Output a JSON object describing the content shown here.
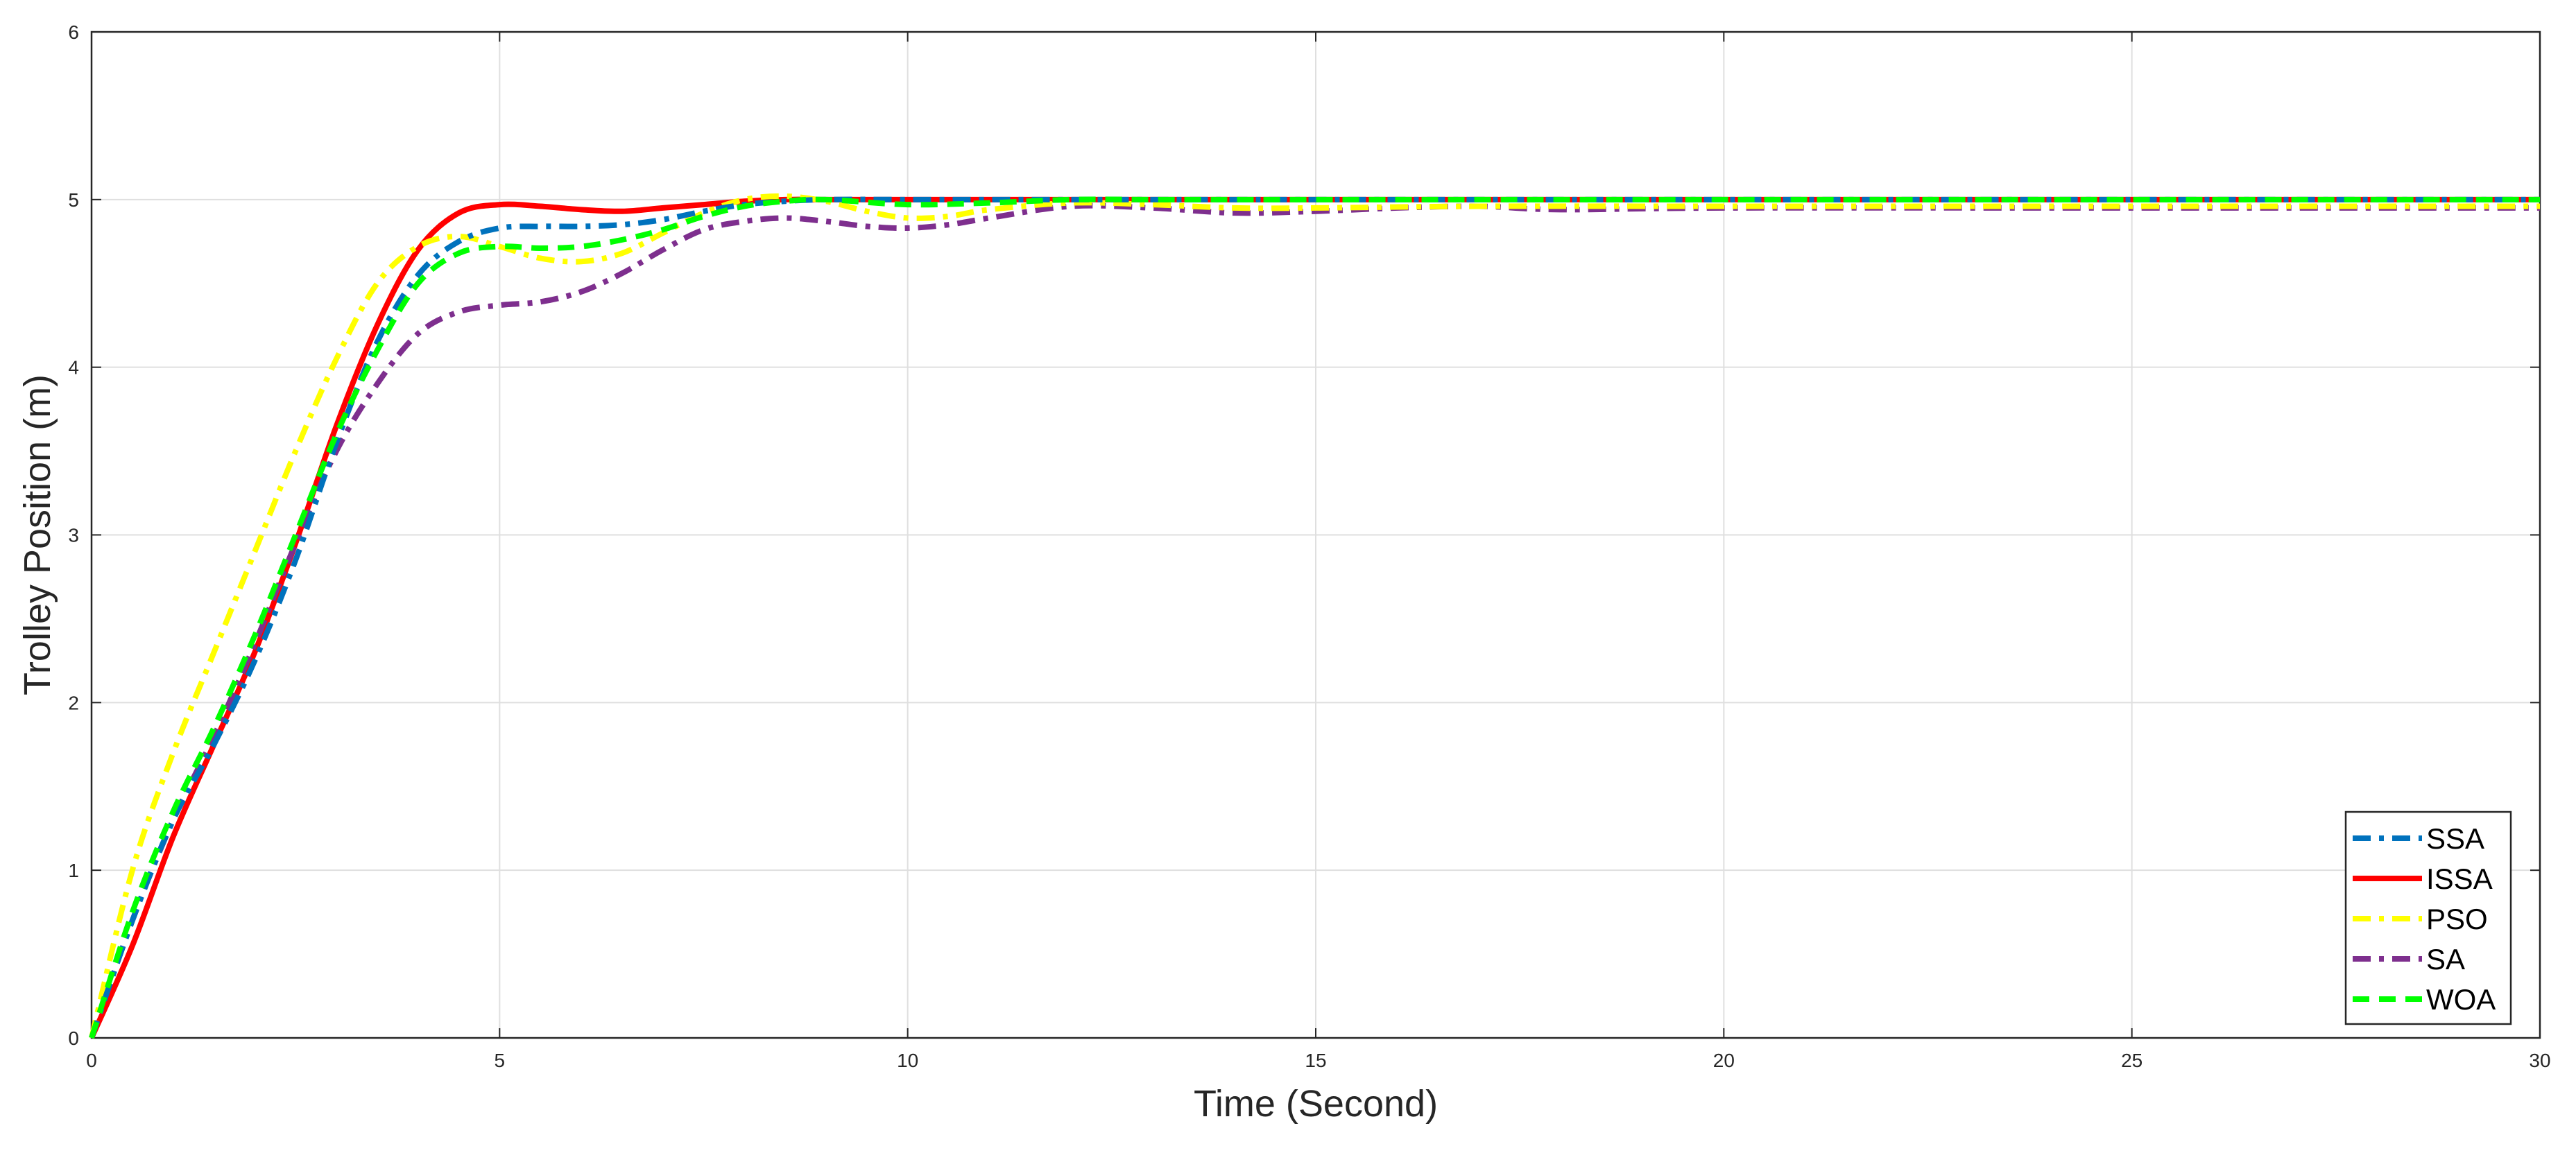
{
  "chart_data": {
    "type": "line",
    "title": "",
    "xlabel": "Time (Second)",
    "ylabel": "Trolley Position (m)",
    "xlim": [
      0,
      30
    ],
    "ylim": [
      0,
      6
    ],
    "xticks": [
      0,
      5,
      10,
      15,
      20,
      25,
      30
    ],
    "yticks": [
      0,
      1,
      2,
      3,
      4,
      5,
      6
    ],
    "xtick_labels": [
      "0",
      "5",
      "10",
      "15",
      "20",
      "25",
      "30"
    ],
    "ytick_labels": [
      "0",
      "1",
      "2",
      "3",
      "4",
      "5",
      "6"
    ],
    "grid": true,
    "legend_position": "bottom-right",
    "series": [
      {
        "name": "SSA",
        "color": "#0072BD",
        "line_style": "dash-dot",
        "x": [
          0,
          0.5,
          1,
          1.5,
          2,
          2.5,
          3,
          3.5,
          4,
          4.5,
          5,
          5.5,
          6,
          6.5,
          7,
          7.5,
          8,
          8.5,
          9,
          10,
          11,
          12,
          13,
          15,
          20,
          25,
          30
        ],
        "y": [
          0,
          0.7,
          1.3,
          1.75,
          2.25,
          2.85,
          3.55,
          4.15,
          4.55,
          4.75,
          4.83,
          4.84,
          4.84,
          4.85,
          4.88,
          4.93,
          4.97,
          4.99,
          5.0,
          5.0,
          5.0,
          5.0,
          5.0,
          5.0,
          5.0,
          5.0,
          5.0
        ]
      },
      {
        "name": "ISSA",
        "color": "#FF0000",
        "line_style": "solid",
        "x": [
          0,
          0.5,
          1,
          1.5,
          2,
          2.5,
          3,
          3.5,
          4,
          4.5,
          5,
          5.5,
          6,
          6.5,
          7,
          7.5,
          8,
          8.5,
          9,
          10,
          11,
          12,
          13,
          15,
          20,
          25,
          30
        ],
        "y": [
          0,
          0.55,
          1.2,
          1.75,
          2.3,
          2.95,
          3.65,
          4.25,
          4.7,
          4.92,
          4.97,
          4.96,
          4.94,
          4.93,
          4.95,
          4.97,
          4.99,
          5.0,
          5.0,
          5.0,
          5.0,
          5.0,
          5.0,
          5.0,
          5.0,
          5.0,
          5.0
        ]
      },
      {
        "name": "PSO",
        "color": "#FFFF00",
        "line_style": "dash-dot",
        "x": [
          0,
          0.5,
          1,
          1.5,
          2,
          2.5,
          3,
          3.5,
          4,
          4.5,
          5,
          5.5,
          6,
          6.5,
          7,
          7.5,
          8,
          8.5,
          9,
          9.5,
          10,
          10.5,
          11,
          12,
          13,
          14,
          15,
          17,
          20,
          25,
          30
        ],
        "y": [
          0,
          1.0,
          1.7,
          2.3,
          2.9,
          3.5,
          4.05,
          4.5,
          4.72,
          4.78,
          4.72,
          4.65,
          4.63,
          4.68,
          4.8,
          4.92,
          5.0,
          5.02,
          4.99,
          4.93,
          4.89,
          4.9,
          4.94,
          4.98,
          4.97,
          4.95,
          4.95,
          4.96,
          4.96,
          4.96,
          4.96
        ]
      },
      {
        "name": "SA",
        "color": "#7E2F8E",
        "line_style": "dash-dot",
        "x": [
          0,
          0.5,
          1,
          1.5,
          2,
          2.5,
          3,
          3.5,
          4,
          4.5,
          5,
          5.5,
          6,
          6.5,
          7,
          7.5,
          8,
          8.5,
          9,
          9.5,
          10,
          10.5,
          11,
          12,
          13,
          14,
          15,
          16,
          17,
          18,
          20,
          25,
          30
        ],
        "y": [
          0,
          0.7,
          1.3,
          1.8,
          2.35,
          2.95,
          3.5,
          3.9,
          4.2,
          4.33,
          4.37,
          4.39,
          4.45,
          4.56,
          4.7,
          4.82,
          4.87,
          4.89,
          4.87,
          4.84,
          4.83,
          4.85,
          4.89,
          4.96,
          4.95,
          4.92,
          4.93,
          4.95,
          4.96,
          4.94,
          4.95,
          4.95,
          4.95
        ]
      },
      {
        "name": "WOA",
        "color": "#00FF00",
        "line_style": "dashed",
        "x": [
          0,
          0.5,
          1,
          1.5,
          2,
          2.5,
          3,
          3.5,
          4,
          4.5,
          5,
          5.5,
          6,
          6.5,
          7,
          7.5,
          8,
          8.5,
          9,
          10,
          11,
          12,
          13,
          15,
          20,
          25,
          30
        ],
        "y": [
          0,
          0.75,
          1.35,
          1.85,
          2.4,
          3.0,
          3.6,
          4.1,
          4.5,
          4.68,
          4.72,
          4.71,
          4.72,
          4.76,
          4.82,
          4.9,
          4.96,
          4.99,
          5.0,
          4.97,
          4.98,
          5.0,
          5.0,
          5.0,
          5.0,
          5.0,
          5.0
        ]
      }
    ]
  }
}
